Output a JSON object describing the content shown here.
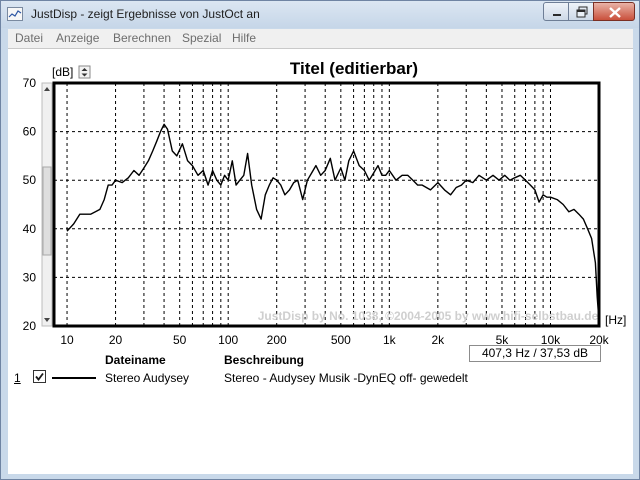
{
  "window": {
    "title": "JustDisp - zeigt Ergebnisse von JustOct an",
    "controls": {
      "minimize": "minimize-icon",
      "maximize": "maximize-icon",
      "close": "close-icon"
    }
  },
  "menu": [
    "Datei",
    "Anzeige",
    "Berechnen",
    "Spezial",
    "Hilfe"
  ],
  "chart_data": {
    "type": "line",
    "title": "Titel (editierbar)",
    "ylabel": "[dB]",
    "xlabel": "[Hz]",
    "x_scale": "log",
    "xlim": [
      8.3,
      20000
    ],
    "ylim": [
      20,
      70
    ],
    "y_ticks": [
      20,
      30,
      40,
      50,
      60,
      70
    ],
    "x_ticks": [
      {
        "value": 10,
        "label": "10"
      },
      {
        "value": 20,
        "label": "20"
      },
      {
        "value": 50,
        "label": "50"
      },
      {
        "value": 100,
        "label": "100"
      },
      {
        "value": 200,
        "label": "200"
      },
      {
        "value": 500,
        "label": "500"
      },
      {
        "value": 1000,
        "label": "1k"
      },
      {
        "value": 2000,
        "label": "2k"
      },
      {
        "value": 5000,
        "label": "5k"
      },
      {
        "value": 10000,
        "label": "10k"
      },
      {
        "value": 20000,
        "label": "20k"
      }
    ],
    "grid": true,
    "watermark": "JustDisp by No. 1038, ©2004-2005 by www.hifi-selbstbau.de",
    "readout": "407,3 Hz / 37,53 dB",
    "series": [
      {
        "name": "Stereo Audysey",
        "color": "#000000",
        "x": [
          10,
          11,
          12,
          13,
          14,
          15,
          16,
          17,
          18,
          19,
          20,
          22,
          24,
          26,
          28,
          30,
          32,
          34,
          36,
          38,
          40,
          42,
          45,
          48,
          52,
          56,
          60,
          65,
          70,
          75,
          80,
          85,
          90,
          95,
          100,
          106,
          112,
          118,
          125,
          132,
          140,
          150,
          160,
          170,
          180,
          190,
          200,
          212,
          225,
          240,
          255,
          270,
          290,
          310,
          330,
          350,
          375,
          400,
          430,
          460,
          500,
          530,
          560,
          600,
          650,
          700,
          750,
          800,
          850,
          900,
          950,
          1000,
          1100,
          1200,
          1300,
          1400,
          1500,
          1600,
          1800,
          2000,
          2200,
          2400,
          2600,
          2800,
          3000,
          3300,
          3600,
          4000,
          4400,
          4800,
          5200,
          5600,
          6000,
          6500,
          7000,
          7500,
          8000,
          8500,
          9000,
          9500,
          10000,
          11000,
          12000,
          13000,
          14000,
          15000,
          16000,
          17000,
          18000,
          19000,
          19500,
          20000
        ],
        "y": [
          39.5,
          41,
          43,
          43,
          43,
          43.5,
          44,
          46,
          49,
          49,
          50,
          49.5,
          50.5,
          52,
          51,
          52.5,
          54,
          56,
          58,
          60,
          61.5,
          60.5,
          56,
          55,
          57.5,
          54,
          53,
          51,
          52,
          49,
          52,
          50,
          49,
          51,
          50,
          54,
          49,
          50,
          51,
          55.5,
          49,
          44,
          42,
          47,
          49,
          50.5,
          50,
          49,
          47,
          48,
          49.5,
          50,
          46,
          50,
          51.5,
          53,
          51,
          52,
          54.5,
          50,
          52.5,
          50,
          54,
          56,
          53,
          52,
          50,
          51.5,
          53,
          51,
          51,
          52,
          50,
          51,
          51,
          50,
          49,
          49,
          48,
          49.5,
          48,
          47,
          48.5,
          49,
          50,
          49.5,
          51,
          50,
          51,
          50,
          51,
          50,
          50.5,
          51,
          50,
          49,
          48,
          45.5,
          47,
          46.5,
          46.5,
          46,
          45,
          43.5,
          44,
          43,
          42,
          40,
          38,
          33,
          26,
          21
        ]
      }
    ]
  },
  "legend": {
    "headers": {
      "name": "Dateiname",
      "description": "Beschreibung"
    },
    "rows": [
      {
        "index": "1",
        "checked": true,
        "name": "Stereo Audysey",
        "description": "Stereo - Audysey Musik -DynEQ off- gewedelt"
      }
    ]
  }
}
